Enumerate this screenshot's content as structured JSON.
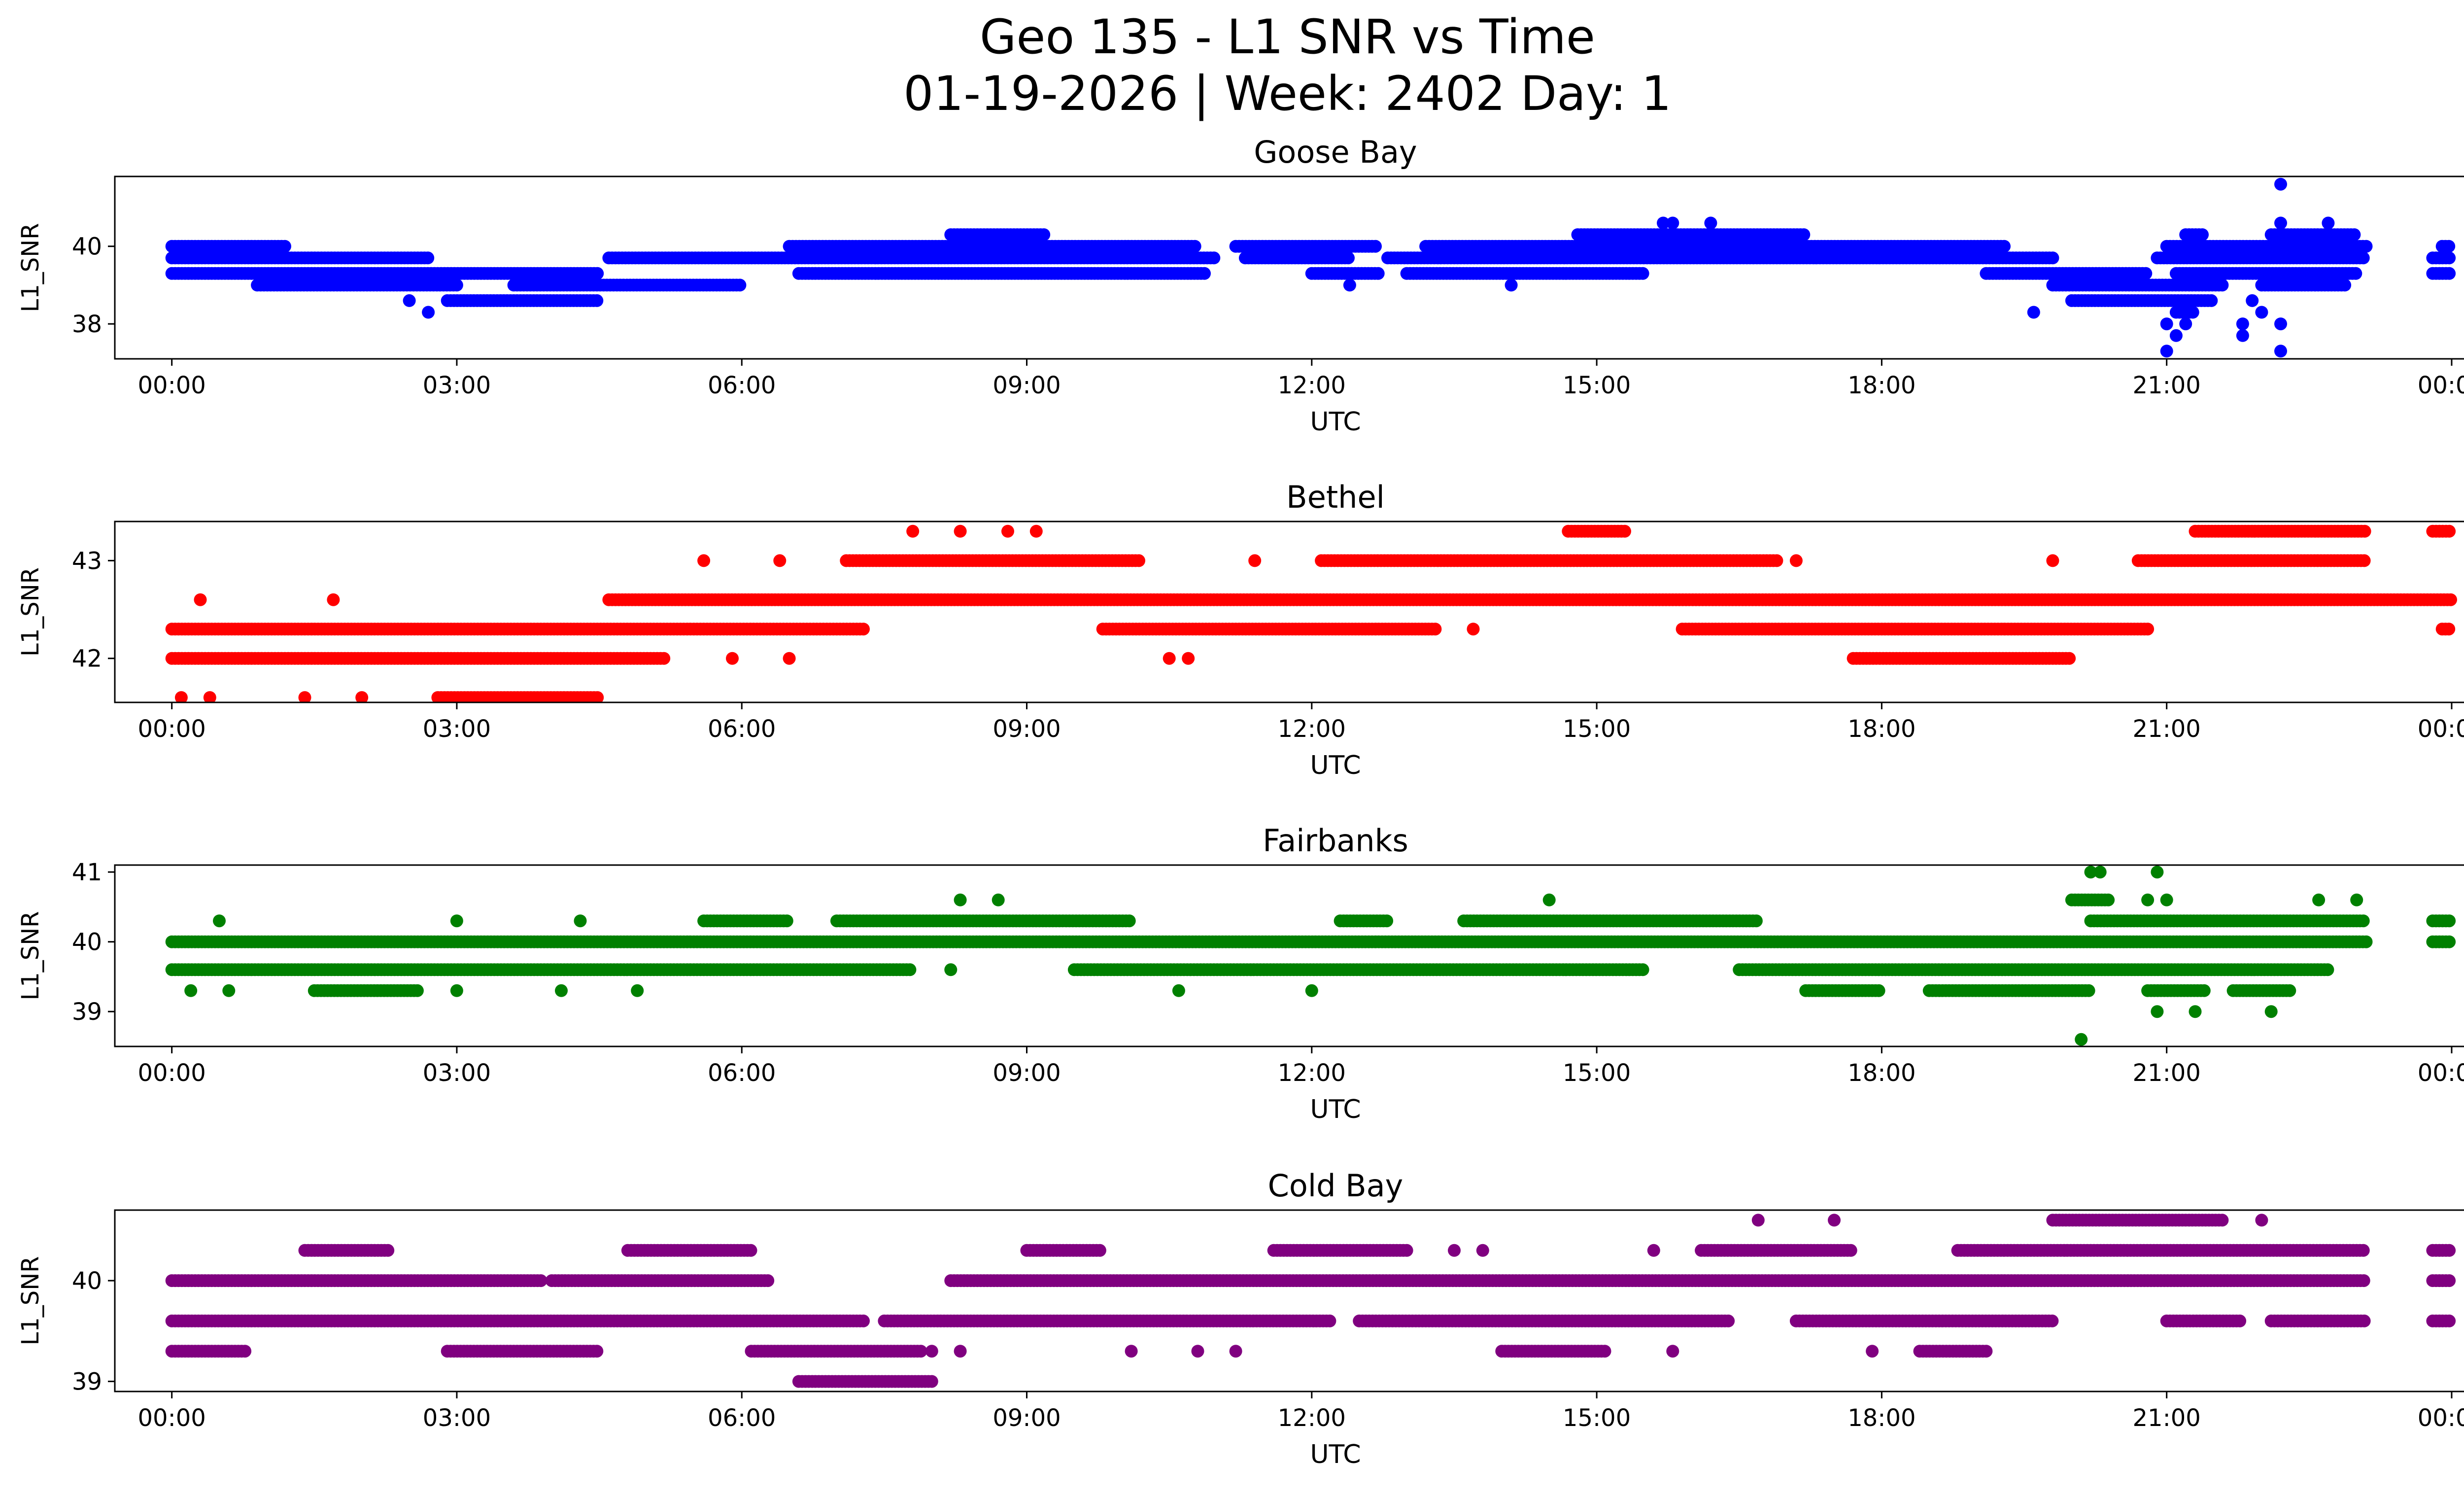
{
  "figure": {
    "title_line1": "Geo 135 - L1 SNR vs Time",
    "title_line2": "01-19-2026 | Week: 2402 Day: 1"
  },
  "chart_data": [
    {
      "type": "scatter",
      "title": "Goose Bay",
      "xlabel": "UTC",
      "ylabel": "L1_SNR",
      "color": "#0000ff",
      "xlim": [
        -0.6,
        25.1
      ],
      "ylim": [
        37.1,
        41.8
      ],
      "xticks": [
        0,
        3,
        6,
        9,
        12,
        15,
        18,
        21,
        24
      ],
      "xtick_labels": [
        "00:00",
        "03:00",
        "06:00",
        "09:00",
        "12:00",
        "15:00",
        "18:00",
        "21:00",
        "00:00"
      ],
      "yticks": [
        38,
        40
      ],
      "ytick_labels": [
        "38",
        "40"
      ],
      "series": [
        {
          "name": "40.0",
          "segments": [
            [
              0.0,
              1.2
            ],
            [
              6.5,
              10.8
            ],
            [
              11.2,
              12.7
            ],
            [
              13.2,
              19.3
            ],
            [
              21.0,
              23.1
            ],
            [
              23.9,
              24.0
            ]
          ],
          "isolated": []
        },
        {
          "name": "39.7",
          "segments": [
            [
              0.0,
              2.7
            ],
            [
              4.6,
              11.0
            ],
            [
              11.3,
              12.4
            ],
            [
              12.8,
              19.8
            ],
            [
              20.9,
              23.1
            ],
            [
              23.8,
              24.0
            ]
          ],
          "isolated": []
        },
        {
          "name": "39.3",
          "segments": [
            [
              0.0,
              4.5
            ],
            [
              6.6,
              10.9
            ],
            [
              12.0,
              12.7
            ],
            [
              13.0,
              15.5
            ],
            [
              19.1,
              20.8
            ],
            [
              21.1,
              23.0
            ],
            [
              23.8,
              24.0
            ]
          ],
          "isolated": []
        },
        {
          "name": "39.0",
          "segments": [
            [
              0.9,
              3.0
            ],
            [
              3.6,
              6.0
            ],
            [
              19.8,
              21.6
            ],
            [
              22.0,
              22.9
            ]
          ],
          "isolated": [
            12.4,
            14.1
          ]
        },
        {
          "name": "38.6",
          "segments": [
            [
              2.9,
              4.5
            ],
            [
              20.0,
              21.5
            ]
          ],
          "isolated": [
            2.5,
            21.9
          ]
        },
        {
          "name": "40.3",
          "segments": [
            [
              8.2,
              9.2
            ],
            [
              14.8,
              17.2
            ],
            [
              21.2,
              21.4
            ],
            [
              22.1,
              23.0
            ]
          ],
          "isolated": []
        },
        {
          "name": "40.6",
          "segments": [],
          "isolated": [
            15.7,
            15.8,
            16.2,
            22.2,
            22.7
          ]
        },
        {
          "name": "38.3",
          "segments": [
            [
              21.1,
              21.3
            ]
          ],
          "isolated": [
            2.7,
            19.6,
            22.0
          ]
        },
        {
          "name": "38.0",
          "segments": [],
          "isolated": [
            21.0,
            21.2,
            21.8,
            22.2
          ]
        },
        {
          "name": "37.7",
          "segments": [],
          "isolated": [
            21.1,
            21.8
          ]
        },
        {
          "name": "37.3",
          "segments": [],
          "isolated": [
            21.0,
            22.2
          ]
        },
        {
          "name": "41.6",
          "segments": [],
          "isolated": [
            22.2
          ]
        }
      ]
    },
    {
      "type": "scatter",
      "title": "Bethel",
      "xlabel": "UTC",
      "ylabel": "L1_SNR",
      "color": "#ff0000",
      "xlim": [
        -0.6,
        25.1
      ],
      "ylim": [
        41.55,
        43.4
      ],
      "xticks": [
        0,
        3,
        6,
        9,
        12,
        15,
        18,
        21,
        24
      ],
      "xtick_labels": [
        "00:00",
        "03:00",
        "06:00",
        "09:00",
        "12:00",
        "15:00",
        "18:00",
        "21:00",
        "00:00"
      ],
      "yticks": [
        42,
        43
      ],
      "ytick_labels": [
        "42",
        "43"
      ],
      "series": [
        {
          "name": "42.3",
          "segments": [
            [
              0.0,
              7.3
            ],
            [
              9.8,
              13.3
            ],
            [
              15.9,
              20.8
            ],
            [
              23.9,
              24.0
            ]
          ],
          "isolated": [
            13.7
          ]
        },
        {
          "name": "42.0",
          "segments": [
            [
              0.0,
              5.2
            ],
            [
              17.7,
              20.0
            ]
          ],
          "isolated": [
            5.9,
            6.5,
            10.5,
            10.7
          ]
        },
        {
          "name": "42.6",
          "segments": [
            [
              4.6,
              24.0
            ]
          ],
          "isolated": [
            0.3,
            1.7
          ]
        },
        {
          "name": "43.0",
          "segments": [
            [
              7.1,
              10.2
            ],
            [
              12.1,
              16.9
            ],
            [
              20.7,
              23.1
            ]
          ],
          "isolated": [
            5.6,
            6.4,
            11.4,
            17.1,
            19.8
          ]
        },
        {
          "name": "43.3",
          "segments": [
            [
              14.7,
              15.3
            ],
            [
              21.3,
              23.1
            ],
            [
              23.8,
              24.0
            ]
          ],
          "isolated": [
            7.8,
            8.3,
            8.8,
            9.1
          ]
        },
        {
          "name": "41.6",
          "segments": [
            [
              2.8,
              4.5
            ]
          ],
          "isolated": [
            0.1,
            0.4,
            1.4,
            2.0
          ]
        }
      ]
    },
    {
      "type": "scatter",
      "title": "Fairbanks",
      "xlabel": "UTC",
      "ylabel": "L1_SNR",
      "color": "#008000",
      "xlim": [
        -0.6,
        25.1
      ],
      "ylim": [
        38.5,
        41.1
      ],
      "xticks": [
        0,
        3,
        6,
        9,
        12,
        15,
        18,
        21,
        24
      ],
      "xtick_labels": [
        "00:00",
        "03:00",
        "06:00",
        "09:00",
        "12:00",
        "15:00",
        "18:00",
        "21:00",
        "00:00"
      ],
      "yticks": [
        39,
        40,
        41
      ],
      "ytick_labels": [
        "39",
        "40",
        "41"
      ],
      "series": [
        {
          "name": "40.0",
          "segments": [
            [
              0.0,
              23.1
            ],
            [
              23.8,
              24.0
            ]
          ],
          "isolated": []
        },
        {
          "name": "39.6",
          "segments": [
            [
              0.0,
              7.8
            ],
            [
              9.5,
              15.5
            ],
            [
              16.5,
              22.7
            ]
          ],
          "isolated": [
            8.2
          ]
        },
        {
          "name": "39.3",
          "segments": [
            [
              1.5,
              2.6
            ],
            [
              17.2,
              18.0
            ],
            [
              18.5,
              20.2
            ],
            [
              20.8,
              21.4
            ],
            [
              21.7,
              22.3
            ]
          ],
          "isolated": [
            0.2,
            0.6,
            3.0,
            4.1,
            4.9,
            10.6,
            12.0
          ]
        },
        {
          "name": "40.3",
          "segments": [
            [
              5.6,
              6.5
            ],
            [
              7.0,
              10.1
            ],
            [
              12.3,
              12.8
            ],
            [
              13.6,
              16.7
            ],
            [
              20.2,
              23.1
            ],
            [
              23.8,
              24.0
            ]
          ],
          "isolated": [
            0.5,
            3.0,
            4.3
          ]
        },
        {
          "name": "40.6",
          "segments": [
            [
              20.0,
              20.4
            ]
          ],
          "isolated": [
            8.3,
            8.7,
            14.5,
            20.8,
            21.0,
            22.6,
            23.0
          ]
        },
        {
          "name": "41.0",
          "segments": [],
          "isolated": [
            20.2,
            20.3,
            20.9
          ]
        },
        {
          "name": "39.0",
          "segments": [],
          "isolated": [
            20.9,
            21.3,
            22.1
          ]
        },
        {
          "name": "38.6",
          "segments": [],
          "isolated": [
            20.1
          ]
        }
      ]
    },
    {
      "type": "scatter",
      "title": "Cold Bay",
      "xlabel": "UTC",
      "ylabel": "L1_SNR",
      "color": "#800080",
      "xlim": [
        -0.6,
        25.1
      ],
      "ylim": [
        38.9,
        40.7
      ],
      "xticks": [
        0,
        3,
        6,
        9,
        12,
        15,
        18,
        21,
        24
      ],
      "xtick_labels": [
        "00:00",
        "03:00",
        "06:00",
        "09:00",
        "12:00",
        "15:00",
        "18:00",
        "21:00",
        "00:00"
      ],
      "yticks": [
        39,
        40
      ],
      "ytick_labels": [
        "39",
        "40"
      ],
      "series": [
        {
          "name": "39.6",
          "segments": [
            [
              0.0,
              7.3
            ],
            [
              7.5,
              12.2
            ],
            [
              12.5,
              16.4
            ],
            [
              17.1,
              19.8
            ],
            [
              21.0,
              21.8
            ],
            [
              22.1,
              23.1
            ],
            [
              23.8,
              24.0
            ]
          ],
          "isolated": []
        },
        {
          "name": "40.0",
          "segments": [
            [
              0.0,
              3.9
            ],
            [
              4.0,
              6.3
            ],
            [
              8.2,
              23.1
            ],
            [
              23.8,
              24.0
            ]
          ],
          "isolated": []
        },
        {
          "name": "39.3",
          "segments": [
            [
              0.0,
              0.8
            ],
            [
              2.9,
              4.5
            ],
            [
              6.1,
              7.9
            ],
            [
              14.0,
              15.1
            ],
            [
              18.4,
              19.1
            ]
          ],
          "isolated": [
            8.0,
            8.3,
            10.1,
            10.8,
            11.2,
            15.8,
            17.9
          ]
        },
        {
          "name": "40.3",
          "segments": [
            [
              1.4,
              2.3
            ],
            [
              4.8,
              6.1
            ],
            [
              9.0,
              9.8
            ],
            [
              11.6,
              13.0
            ],
            [
              16.1,
              17.7
            ],
            [
              18.8,
              23.1
            ],
            [
              23.8,
              24.0
            ]
          ],
          "isolated": [
            13.5,
            13.8,
            15.6
          ]
        },
        {
          "name": "39.0",
          "segments": [
            [
              6.6,
              8.0
            ]
          ],
          "isolated": []
        },
        {
          "name": "40.6",
          "segments": [
            [
              19.8,
              21.6
            ]
          ],
          "isolated": [
            16.7,
            17.5,
            22.0
          ]
        }
      ]
    }
  ]
}
